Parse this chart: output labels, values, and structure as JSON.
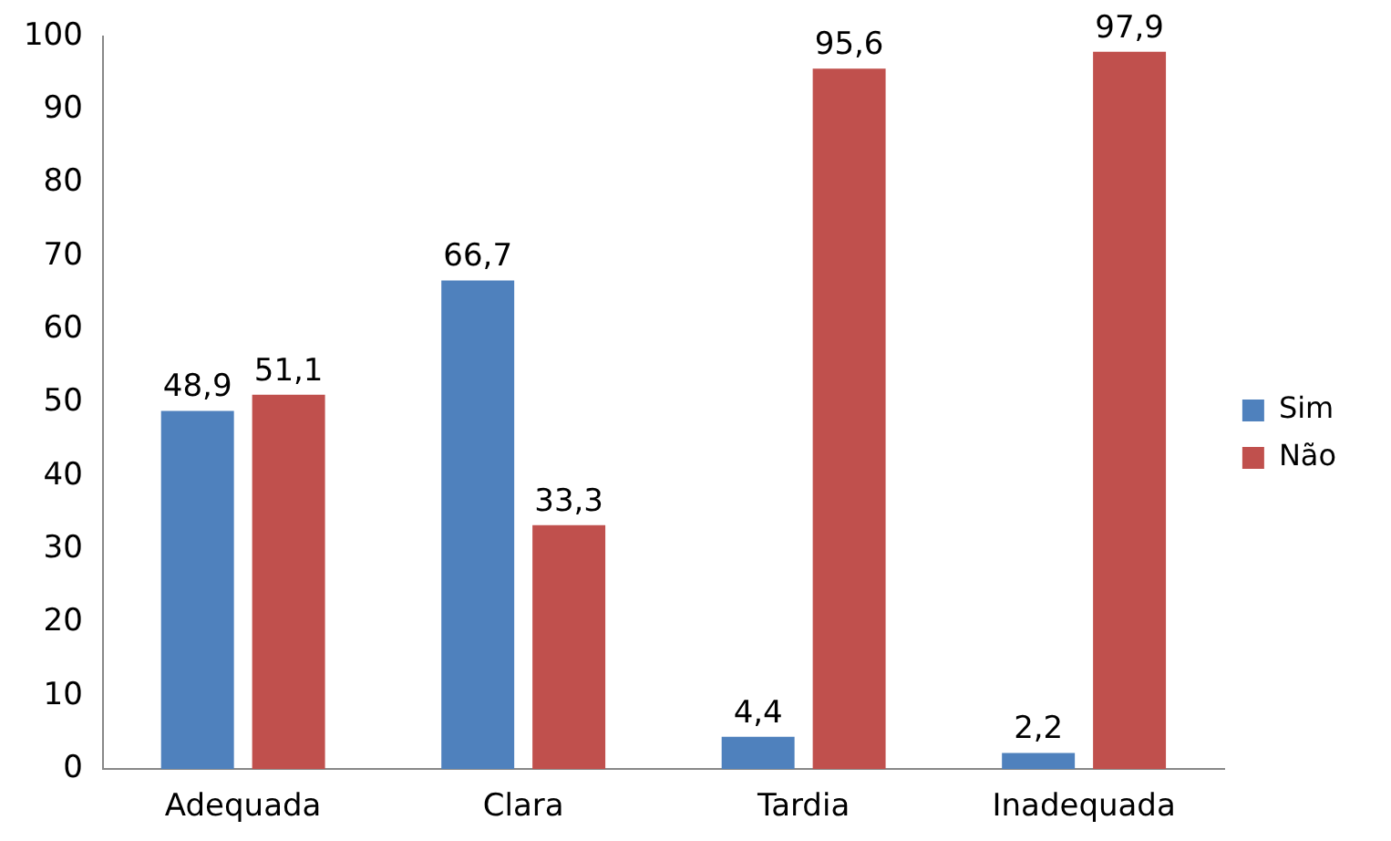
{
  "chart_data": {
    "type": "bar",
    "categories": [
      "Adequada",
      "Clara",
      "Tardia",
      "Inadequada"
    ],
    "series": [
      {
        "name": "Sim",
        "color": "#4f81bd",
        "values": [
          48.9,
          66.7,
          4.4,
          2.2
        ],
        "value_labels": [
          "48,9",
          "66,7",
          "4,4",
          "2,2"
        ]
      },
      {
        "name": "Não",
        "color": "#c0504d",
        "values": [
          51.1,
          33.3,
          95.6,
          97.9
        ],
        "value_labels": [
          "51,1",
          "33,3",
          "95,6",
          "97,9"
        ]
      }
    ],
    "ylim": [
      0,
      100
    ],
    "yticks": [
      0,
      10,
      20,
      30,
      40,
      50,
      60,
      70,
      80,
      90,
      100
    ],
    "grid": false,
    "legend": "right"
  }
}
